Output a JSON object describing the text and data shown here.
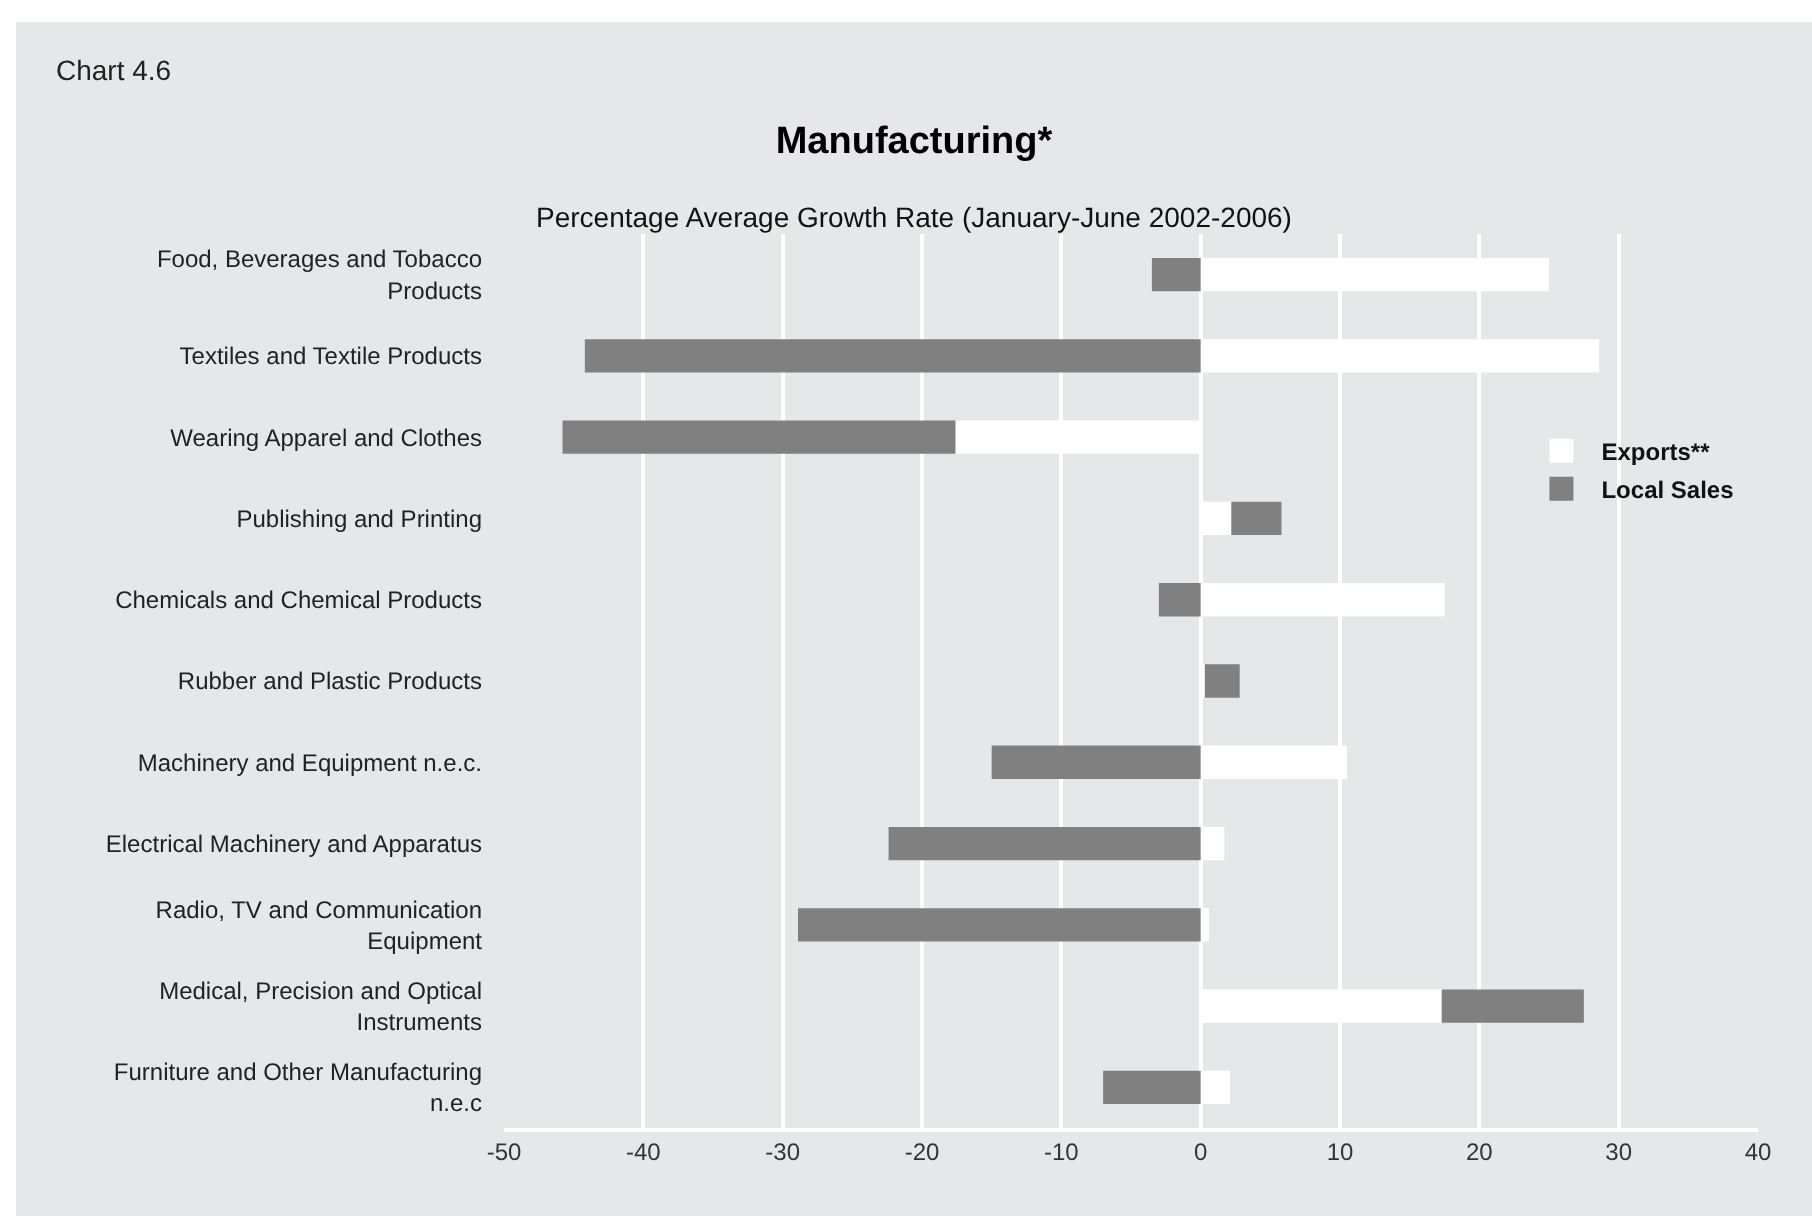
{
  "chart_data": {
    "type": "bar",
    "title": "Manufacturing*",
    "subtitle": "Percentage Average Growth Rate (January-June 2002-2006)",
    "annotations": [
      "Chart 4.6"
    ],
    "orientation": "horizontal",
    "stacked": true,
    "categories": [
      "Food, Beverages and Tobacco\nProducts",
      "Textiles and Textile Products",
      "Wearing Apparel and Clothes",
      "Publishing and Printing",
      "Chemicals and Chemical Products",
      "Rubber and Plastic Products",
      "Machinery and Equipment n.e.c.",
      "Electrical Machinery and Apparatus",
      "Radio, TV and Communication\nEquipment",
      "Medical, Precision and Optical\nInstruments",
      "Furniture and Other Manufacturing\nn.e.c"
    ],
    "series": [
      {
        "name": "Exports**",
        "color": "#ffffff",
        "values": [
          25,
          28.6,
          -17.6,
          2.2,
          17.5,
          0.3,
          10.5,
          1.7,
          0.6,
          17.3,
          2.1
        ]
      },
      {
        "name": "Local Sales",
        "color": "#808080",
        "values": [
          -3.5,
          -44.2,
          -28.2,
          3.6,
          -3.0,
          2.5,
          -15,
          -22.4,
          -28.9,
          10.2,
          -7.0
        ]
      }
    ],
    "xlim": [
      -50,
      40
    ],
    "xticks": [
      -50,
      -40,
      -30,
      -20,
      -10,
      0,
      10,
      20,
      30,
      40
    ],
    "grid": "x",
    "legend": "top right"
  }
}
